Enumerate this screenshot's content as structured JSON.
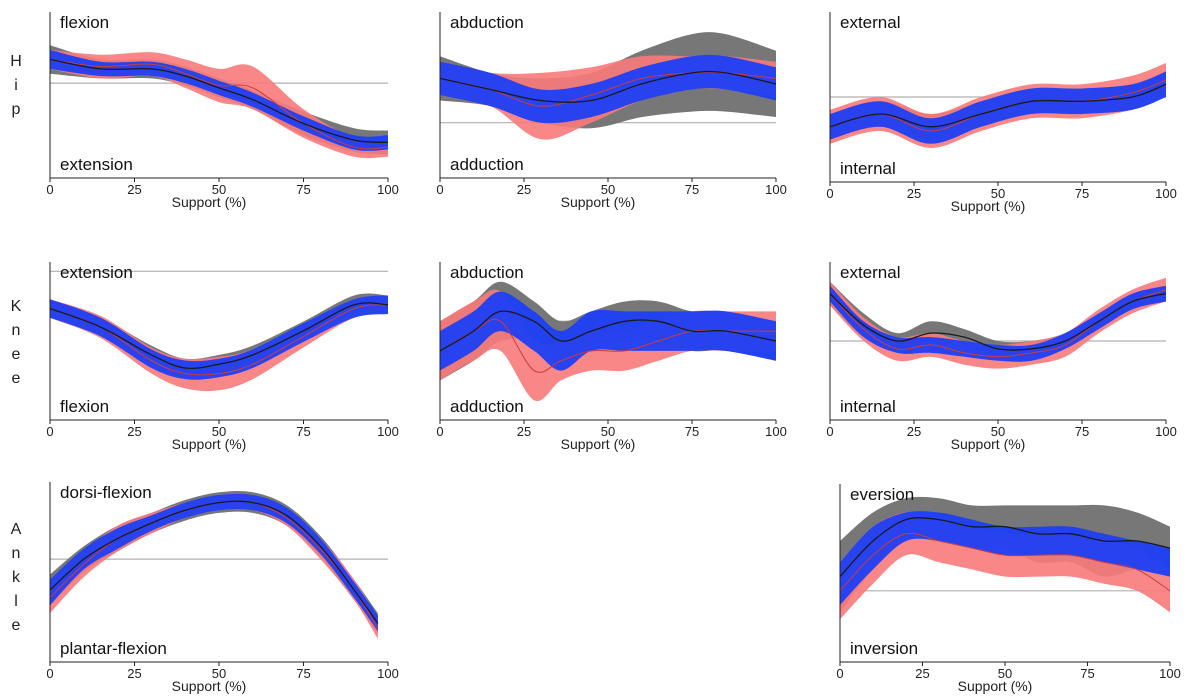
{
  "row_labels": [
    {
      "letters": [
        "H",
        "i",
        "p"
      ]
    },
    {
      "letters": [
        "K",
        "n",
        "e",
        "e"
      ]
    },
    {
      "letters": [
        "A",
        "n",
        "k",
        "l",
        "e"
      ]
    }
  ],
  "colors": {
    "red": "#fa7a7a",
    "blue": "#1f3ff5",
    "gray": "#707070",
    "mean_red": "#c83c3c",
    "mean_black": "#1a1a1a",
    "axis": "#222222",
    "zero": "#b0b0b0"
  },
  "chart_data": [
    {
      "id": "hip-flexion",
      "type": "area",
      "xlabel": "Support (%)",
      "top_label": "flexion",
      "bottom_label": "extension",
      "xticks": [
        0,
        25,
        50,
        75,
        100
      ],
      "xlim": [
        0,
        100
      ],
      "ylim": [
        -40,
        30
      ],
      "series": {
        "gray": {
          "x": [
            0,
            15,
            30,
            40,
            50,
            60,
            75,
            90,
            100
          ],
          "mean": [
            10,
            6,
            6,
            3,
            -2,
            -7,
            -17,
            -24,
            -25
          ],
          "sd": [
            6,
            4,
            4,
            4,
            4,
            4,
            5,
            5,
            5
          ]
        },
        "red": {
          "x": [
            0,
            15,
            30,
            40,
            50,
            60,
            75,
            90,
            100
          ],
          "mean": [
            10,
            7,
            8,
            4,
            -1,
            -2,
            -17,
            -27,
            -27
          ],
          "sd": [
            4,
            5,
            5,
            6,
            7,
            9,
            6,
            4,
            4
          ]
        },
        "blue": {
          "x": [
            0,
            15,
            30,
            40,
            50,
            60,
            75,
            90,
            100
          ],
          "mean": [
            10,
            6,
            6,
            3,
            -2,
            -7,
            -17,
            -25,
            -25
          ],
          "sd": [
            4,
            3,
            3,
            3,
            3,
            3,
            3,
            3,
            3
          ]
        }
      }
    },
    {
      "id": "hip-abduction",
      "type": "area",
      "xlabel": "Support (%)",
      "top_label": "abduction",
      "bottom_label": "adduction",
      "xticks": [
        0,
        25,
        50,
        75,
        100
      ],
      "xlim": [
        0,
        100
      ],
      "ylim": [
        -10,
        20
      ],
      "series": {
        "gray": {
          "x": [
            0,
            15,
            30,
            45,
            60,
            75,
            85,
            100
          ],
          "mean": [
            8,
            6,
            4,
            4,
            7,
            9,
            9,
            7
          ],
          "sd": [
            4,
            3,
            4,
            5,
            6,
            7,
            7,
            6
          ]
        },
        "red": {
          "x": [
            0,
            15,
            30,
            45,
            60,
            75,
            85,
            100
          ],
          "mean": [
            8,
            6,
            3,
            5,
            8,
            9,
            9,
            8
          ],
          "sd": [
            3,
            3,
            6,
            5,
            4,
            3,
            3,
            3
          ]
        },
        "blue": {
          "x": [
            0,
            15,
            30,
            45,
            60,
            75,
            85,
            100
          ],
          "mean": [
            8,
            6,
            3,
            4,
            7,
            9,
            9,
            7
          ],
          "sd": [
            3,
            3,
            3,
            3,
            3,
            3,
            3,
            3
          ]
        }
      }
    },
    {
      "id": "hip-external",
      "type": "area",
      "xlabel": "Support (%)",
      "top_label": "external",
      "bottom_label": "internal",
      "xticks": [
        0,
        25,
        50,
        75,
        100
      ],
      "xlim": [
        0,
        100
      ],
      "ylim": [
        -20,
        20
      ],
      "series": {
        "gray": {
          "x": [
            0,
            15,
            30,
            45,
            60,
            75,
            90,
            100
          ],
          "mean": [
            -7,
            -4,
            -7,
            -4,
            -1,
            -1,
            0,
            3
          ],
          "sd": [
            3,
            3,
            3,
            3,
            3,
            3,
            3,
            3
          ]
        },
        "red": {
          "x": [
            0,
            15,
            30,
            45,
            60,
            75,
            90,
            100
          ],
          "mean": [
            -7,
            -4,
            -8,
            -4,
            -1,
            -1,
            1,
            4
          ],
          "sd": [
            4,
            4,
            4,
            4,
            4,
            4,
            4,
            4
          ]
        },
        "blue": {
          "x": [
            0,
            15,
            30,
            45,
            60,
            75,
            90,
            100
          ],
          "mean": [
            -7,
            -4,
            -8,
            -4,
            -1,
            -1,
            0,
            3
          ],
          "sd": [
            3,
            3,
            3,
            3,
            3,
            3,
            3,
            3
          ]
        }
      }
    },
    {
      "id": "knee-extension",
      "type": "area",
      "xlabel": "Support (%)",
      "top_label": "extension",
      "bottom_label": "flexion",
      "xticks": [
        0,
        25,
        50,
        75,
        100
      ],
      "xlim": [
        0,
        100
      ],
      "ylim": [
        -80,
        5
      ],
      "series": {
        "gray": {
          "x": [
            0,
            15,
            30,
            40,
            50,
            60,
            75,
            90,
            100
          ],
          "mean": [
            -20,
            -30,
            -45,
            -52,
            -50,
            -45,
            -32,
            -18,
            -18
          ],
          "sd": [
            5,
            5,
            5,
            5,
            5,
            5,
            5,
            5,
            5
          ]
        },
        "red": {
          "x": [
            0,
            15,
            30,
            40,
            50,
            60,
            75,
            90,
            100
          ],
          "mean": [
            -20,
            -30,
            -48,
            -55,
            -55,
            -50,
            -35,
            -20,
            -18
          ],
          "sd": [
            5,
            6,
            7,
            8,
            9,
            8,
            6,
            5,
            5
          ]
        },
        "blue": {
          "x": [
            0,
            15,
            30,
            40,
            50,
            60,
            75,
            90,
            100
          ],
          "mean": [
            -20,
            -30,
            -47,
            -53,
            -52,
            -47,
            -33,
            -20,
            -18
          ],
          "sd": [
            5,
            5,
            5,
            5,
            5,
            5,
            5,
            5,
            5
          ]
        }
      }
    },
    {
      "id": "knee-abduction",
      "type": "area",
      "xlabel": "Support (%)",
      "top_label": "abduction",
      "bottom_label": "adduction",
      "xticks": [
        0,
        25,
        50,
        75,
        100
      ],
      "xlim": [
        0,
        100
      ],
      "ylim": [
        -10,
        6
      ],
      "series": {
        "gray": {
          "x": [
            0,
            10,
            18,
            28,
            36,
            45,
            55,
            65,
            75,
            85,
            100
          ],
          "mean": [
            -3,
            -1,
            1,
            0,
            -2,
            -1,
            0,
            0,
            -1,
            -1,
            -2
          ],
          "sd": [
            3,
            3,
            3,
            2,
            2,
            2,
            2,
            2,
            2,
            2,
            2
          ]
        },
        "red": {
          "x": [
            0,
            10,
            18,
            28,
            36,
            45,
            55,
            65,
            75,
            85,
            100
          ],
          "mean": [
            -3,
            -1,
            0,
            -5,
            -4,
            -3,
            -3,
            -2,
            -1,
            -1,
            -1
          ],
          "sd": [
            3,
            3,
            3,
            3,
            2,
            2,
            2,
            2,
            2,
            2,
            2
          ]
        },
        "blue": {
          "x": [
            0,
            10,
            18,
            28,
            36,
            45,
            55,
            65,
            75,
            85,
            100
          ],
          "mean": [
            -3,
            -1,
            1,
            -1,
            -3,
            -1,
            -1,
            -1,
            -1,
            -1,
            -2
          ],
          "sd": [
            2,
            2,
            2,
            2,
            2,
            2,
            2,
            2,
            2,
            2,
            2
          ]
        }
      }
    },
    {
      "id": "knee-external",
      "type": "area",
      "xlabel": "Support (%)",
      "top_label": "external",
      "bottom_label": "internal",
      "xticks": [
        0,
        25,
        50,
        75,
        100
      ],
      "xlim": [
        0,
        100
      ],
      "ylim": [
        -20,
        20
      ],
      "series": {
        "gray": {
          "x": [
            0,
            10,
            20,
            30,
            40,
            50,
            60,
            70,
            80,
            90,
            100
          ],
          "mean": [
            12,
            4,
            0,
            2,
            1,
            -2,
            -2,
            0,
            5,
            10,
            12
          ],
          "sd": [
            3,
            3,
            2,
            3,
            2,
            2,
            2,
            2,
            2,
            2,
            2
          ]
        },
        "red": {
          "x": [
            0,
            10,
            20,
            30,
            40,
            50,
            60,
            70,
            80,
            90,
            100
          ],
          "mean": [
            12,
            3,
            -2,
            -1,
            -3,
            -4,
            -3,
            -1,
            5,
            10,
            13
          ],
          "sd": [
            3,
            3,
            3,
            3,
            3,
            3,
            3,
            3,
            3,
            3,
            3
          ]
        },
        "blue": {
          "x": [
            0,
            10,
            20,
            30,
            40,
            50,
            60,
            70,
            80,
            90,
            100
          ],
          "mean": [
            12,
            3,
            -1,
            -1,
            -2,
            -3,
            -3,
            0,
            5,
            10,
            12
          ],
          "sd": [
            2,
            2,
            2,
            2,
            2,
            2,
            2,
            2,
            2,
            2,
            2
          ]
        }
      }
    },
    {
      "id": "ankle-dorsiflexion",
      "type": "area",
      "xlabel": "Support (%)",
      "top_label": "dorsi-flexion",
      "bottom_label": "plantar-flexion",
      "xticks": [
        0,
        25,
        50,
        75,
        100
      ],
      "xlim": [
        0,
        100
      ],
      "ylim": [
        -40,
        30
      ],
      "series": {
        "gray": {
          "x": [
            0,
            10,
            20,
            30,
            40,
            50,
            60,
            70,
            80,
            90,
            97
          ],
          "mean": [
            -12,
            0,
            8,
            14,
            19,
            22,
            22,
            17,
            5,
            -12,
            -25
          ],
          "sd": [
            6,
            5,
            5,
            4,
            4,
            4,
            4,
            4,
            4,
            4,
            4
          ]
        },
        "red": {
          "x": [
            0,
            10,
            20,
            30,
            40,
            50,
            60,
            70,
            80,
            90,
            97
          ],
          "mean": [
            -15,
            -2,
            8,
            14,
            19,
            22,
            22,
            16,
            4,
            -12,
            -27
          ],
          "sd": [
            6,
            5,
            5,
            4,
            3,
            3,
            3,
            3,
            4,
            4,
            4
          ]
        },
        "blue": {
          "x": [
            0,
            10,
            20,
            30,
            40,
            50,
            60,
            70,
            80,
            90,
            97
          ],
          "mean": [
            -13,
            0,
            8,
            14,
            19,
            22,
            22,
            17,
            5,
            -12,
            -25
          ],
          "sd": [
            5,
            4,
            4,
            3,
            3,
            3,
            3,
            3,
            3,
            3,
            3
          ]
        }
      }
    },
    {
      "id": "ankle-eversion",
      "type": "area",
      "xlabel": "Support (%)",
      "top_label": "eversion",
      "bottom_label": "inversion",
      "xticks": [
        0,
        25,
        50,
        75,
        100
      ],
      "xlim": [
        0,
        100
      ],
      "ylim": [
        -10,
        15
      ],
      "series": {
        "gray": {
          "x": [
            0,
            10,
            20,
            30,
            40,
            50,
            60,
            70,
            80,
            90,
            100
          ],
          "mean": [
            2,
            7,
            10,
            10,
            9,
            9,
            8,
            8,
            7,
            7,
            6
          ],
          "sd": [
            5,
            4,
            3,
            3,
            3,
            3,
            4,
            4,
            5,
            4,
            3
          ]
        },
        "red": {
          "x": [
            0,
            10,
            20,
            30,
            40,
            50,
            60,
            70,
            80,
            90,
            100
          ],
          "mean": [
            0,
            5,
            8,
            7,
            6,
            5,
            5,
            5,
            4,
            3,
            0
          ],
          "sd": [
            4,
            4,
            3,
            3,
            3,
            3,
            3,
            3,
            3,
            3,
            3
          ]
        },
        "blue": {
          "x": [
            0,
            10,
            20,
            30,
            40,
            50,
            60,
            70,
            80,
            90,
            100
          ],
          "mean": [
            1,
            6,
            9,
            9,
            8,
            7,
            7,
            7,
            6,
            5,
            4
          ],
          "sd": [
            3,
            3,
            2,
            2,
            2,
            2,
            2,
            2,
            2,
            2,
            2
          ]
        }
      }
    }
  ]
}
